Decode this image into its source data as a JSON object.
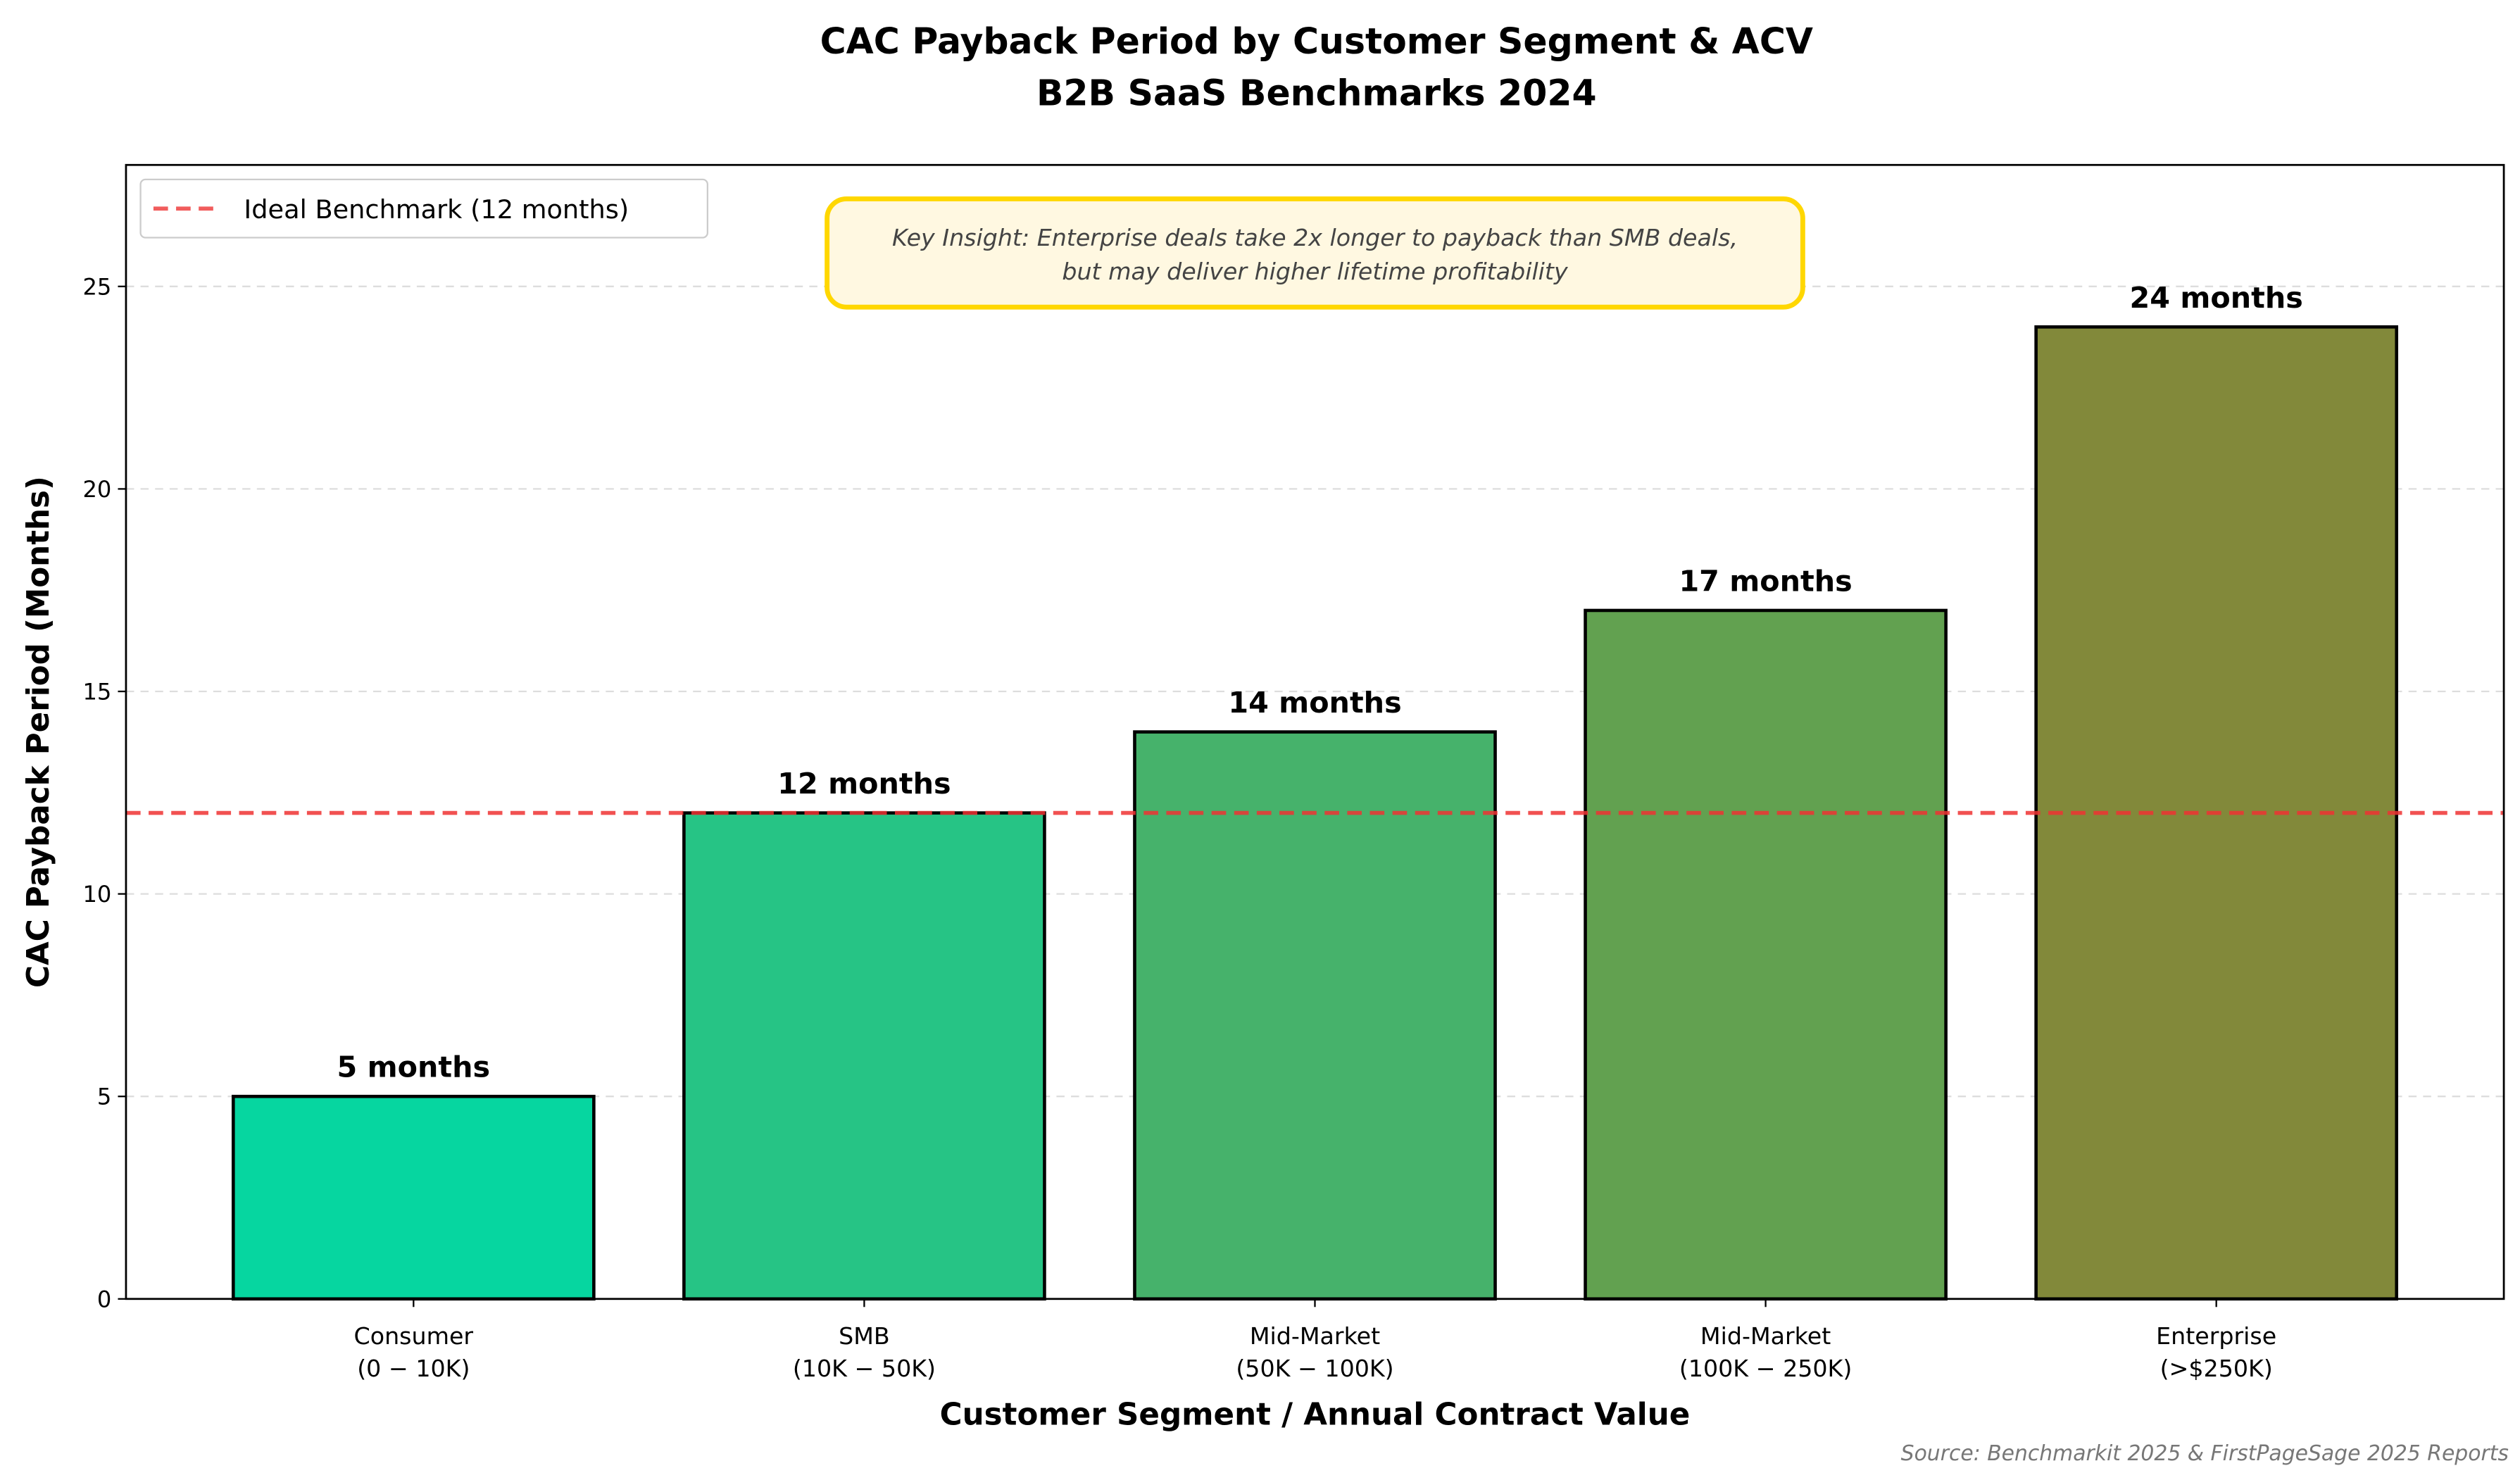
{
  "chart_data": {
    "type": "bar",
    "title": "CAC Payback Period by Customer Segment & ACV",
    "subtitle": "B2B SaaS Benchmarks 2024",
    "xlabel": "Customer Segment / Annual Contract Value",
    "ylabel": "CAC Payback Period (Months)",
    "categories": [
      [
        "Consumer",
        "(0 − 10K)"
      ],
      [
        "SMB",
        "(10K − 50K)"
      ],
      [
        "Mid-Market",
        "(50K − 100K)"
      ],
      [
        "Mid-Market",
        "(100K − 250K)"
      ],
      [
        "Enterprise",
        "(>$250K)"
      ]
    ],
    "values": [
      5,
      12,
      14,
      17,
      24
    ],
    "data_labels": [
      "5 months",
      "12 months",
      "14 months",
      "17 months",
      "24 months"
    ],
    "bar_colors": [
      "#06d6a0",
      "#26c485",
      "#46b26b",
      "#62a150",
      "#82893a"
    ],
    "ylim": [
      0,
      28
    ],
    "yticks": [
      0,
      5,
      10,
      15,
      20,
      25
    ],
    "grid": "y dashed",
    "reference_line": {
      "value": 12,
      "label": "Ideal Benchmark (12 months)",
      "color": "#ee3333"
    },
    "legend_position": "top-left",
    "annotation": {
      "lines": [
        "Key Insight: Enterprise deals take 2x longer to payback than SMB deals,",
        "but may deliver higher lifetime profitability"
      ],
      "border_color": "#ffd700",
      "fill_color": "#fff8e1"
    },
    "source": "Source: Benchmarkit 2025 & FirstPageSage 2025 Reports"
  }
}
